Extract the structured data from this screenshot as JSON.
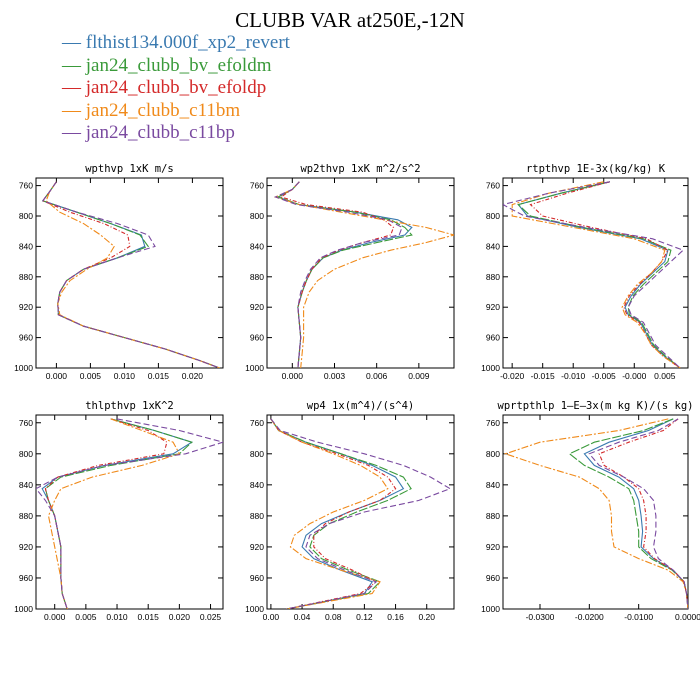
{
  "title": "CLUBB VAR at250E,-12N",
  "legend": [
    {
      "label": "flthist134.000f_xp2_revert",
      "color": "#3a7ab0"
    },
    {
      "label": "jan24_clubb_bv_efoldm",
      "color": "#3a9a3a"
    },
    {
      "label": "jan24_clubb_bv_efoldp",
      "color": "#d42a2a"
    },
    {
      "label": "jan24_clubb_c11bm",
      "color": "#f08a1a"
    },
    {
      "label": "jan24_clubb_c11bp",
      "color": "#7a4aa0"
    }
  ],
  "chart_data": [
    {
      "type": "line",
      "title": "wpthvp  1xK m/s",
      "ylim": [
        1000,
        750
      ],
      "yticks": [
        760,
        800,
        840,
        880,
        920,
        960,
        1000
      ],
      "ytick_labels": [
        "760",
        "800",
        "840",
        "880",
        "920",
        "960",
        "1000"
      ],
      "xlim": [
        -0.003,
        0.0245
      ],
      "xticks": [
        0.0,
        0.005,
        0.01,
        0.015,
        0.02
      ],
      "xtick_labels": [
        "0.000",
        "0.005",
        "0.010",
        "0.015",
        "0.020"
      ],
      "y": [
        755,
        768,
        780,
        795,
        810,
        825,
        840,
        855,
        870,
        885,
        900,
        915,
        930,
        945,
        960,
        975,
        990,
        1000
      ],
      "series": [
        {
          "values": [
            0.0,
            -0.001,
            -0.002,
            0.003,
            0.008,
            0.0125,
            0.013,
            0.009,
            0.004,
            0.0015,
            0.0005,
            0.0002,
            0.0003,
            0.004,
            0.01,
            0.016,
            0.021,
            0.024
          ]
        },
        {
          "values": [
            0.0,
            -0.001,
            -0.002,
            0.003,
            0.008,
            0.0123,
            0.0135,
            0.009,
            0.004,
            0.0015,
            0.0005,
            0.0002,
            0.0003,
            0.004,
            0.01,
            0.016,
            0.021,
            0.024
          ]
        },
        {
          "values": [
            0.0,
            -0.001,
            -0.002,
            0.002,
            0.007,
            0.0105,
            0.0108,
            0.008,
            0.004,
            0.0015,
            0.0005,
            0.0002,
            0.0003,
            0.004,
            0.01,
            0.016,
            0.021,
            0.024
          ]
        },
        {
          "values": [
            0.0,
            -0.001,
            -0.0015,
            0.0005,
            0.004,
            0.0065,
            0.0085,
            0.0075,
            0.0045,
            0.002,
            0.0008,
            0.0002,
            0.0005,
            0.004,
            0.01,
            0.016,
            0.021,
            0.024
          ]
        },
        {
          "values": [
            0.0,
            -0.001,
            -0.002,
            0.003,
            0.009,
            0.0135,
            0.0145,
            0.009,
            0.004,
            0.0015,
            0.0005,
            0.0002,
            0.0003,
            0.004,
            0.01,
            0.016,
            0.021,
            0.024
          ]
        }
      ]
    },
    {
      "type": "line",
      "title": "wp2thvp  1xK m^2/s^2",
      "ylim": [
        1000,
        750
      ],
      "yticks": [
        760,
        800,
        840,
        880,
        920,
        960,
        1000
      ],
      "ytick_labels": [
        "760",
        "800",
        "840",
        "880",
        "920",
        "960",
        "1000"
      ],
      "xlim": [
        -0.0018,
        0.0115
      ],
      "xticks": [
        0.0,
        0.003,
        0.006,
        0.009
      ],
      "xtick_labels": [
        "0.000",
        "0.003",
        "0.006",
        "0.009"
      ],
      "y": [
        755,
        765,
        775,
        785,
        795,
        805,
        815,
        825,
        835,
        845,
        855,
        870,
        885,
        900,
        920,
        940,
        960,
        980,
        1000
      ],
      "series": [
        {
          "values": [
            0.0005,
            0.0,
            -0.001,
            0.0005,
            0.0045,
            0.0075,
            0.0085,
            0.008,
            0.0055,
            0.0035,
            0.0022,
            0.0014,
            0.001,
            0.0007,
            0.0004,
            0.0005,
            0.0006,
            0.0005,
            0.0004
          ]
        },
        {
          "values": [
            0.0005,
            0.0,
            -0.001,
            0.0005,
            0.0045,
            0.007,
            0.008,
            0.0085,
            0.006,
            0.0036,
            0.0022,
            0.0014,
            0.001,
            0.0007,
            0.0004,
            0.0005,
            0.0006,
            0.0005,
            0.0004
          ]
        },
        {
          "values": [
            0.0005,
            0.0,
            -0.0008,
            0.001,
            0.005,
            0.0065,
            0.0072,
            0.007,
            0.005,
            0.0033,
            0.0021,
            0.0014,
            0.001,
            0.0007,
            0.0004,
            0.0005,
            0.0006,
            0.0005,
            0.0004
          ]
        },
        {
          "values": [
            0.0005,
            0.0,
            -0.0012,
            0.0005,
            0.0035,
            0.0065,
            0.0095,
            0.0115,
            0.0095,
            0.007,
            0.005,
            0.003,
            0.0018,
            0.0012,
            0.0008,
            0.0008,
            0.0008,
            0.0007,
            0.0006
          ]
        },
        {
          "values": [
            0.0005,
            0.0,
            -0.0012,
            0.0003,
            0.004,
            0.0068,
            0.0078,
            0.0076,
            0.005,
            0.0032,
            0.002,
            0.0013,
            0.0009,
            0.0006,
            0.0004,
            0.0005,
            0.0006,
            0.0005,
            0.0004
          ]
        }
      ]
    },
    {
      "type": "line",
      "title": "rtpthvp  1E-3x(kg/kg) K",
      "ylim": [
        1000,
        750
      ],
      "yticks": [
        760,
        800,
        840,
        880,
        920,
        960,
        1000
      ],
      "ytick_labels": [
        "760",
        "800",
        "840",
        "880",
        "920",
        "960",
        "1000"
      ],
      "xlim": [
        -0.0215,
        0.0088
      ],
      "xticks": [
        -0.02,
        -0.015,
        -0.01,
        -0.005,
        0.0,
        0.005
      ],
      "xtick_labels": [
        "-0.020",
        "-0.015",
        "-0.010",
        "-0.005",
        "-0.000",
        "0.005"
      ],
      "y": [
        755,
        770,
        785,
        800,
        815,
        830,
        845,
        860,
        875,
        890,
        905,
        920,
        930,
        940,
        955,
        970,
        985,
        1000
      ],
      "series": [
        {
          "values": [
            -0.004,
            -0.012,
            -0.019,
            -0.0175,
            -0.009,
            0.001,
            0.0055,
            0.005,
            0.003,
            0.001,
            -0.0005,
            -0.0015,
            -0.001,
            0.001,
            0.002,
            0.003,
            0.005,
            0.0075
          ]
        },
        {
          "values": [
            -0.004,
            -0.012,
            -0.019,
            -0.017,
            -0.0085,
            0.0015,
            0.006,
            0.0055,
            0.0035,
            0.0015,
            -0.0002,
            -0.001,
            -0.0008,
            0.0012,
            0.0022,
            0.0032,
            0.0052,
            0.0075
          ]
        },
        {
          "values": [
            -0.004,
            -0.011,
            -0.017,
            -0.015,
            -0.007,
            0.002,
            0.0055,
            0.0045,
            0.0028,
            0.0008,
            -0.0008,
            -0.0017,
            -0.0012,
            0.0008,
            0.0018,
            0.0028,
            0.0048,
            0.0075
          ]
        },
        {
          "values": [
            -0.005,
            -0.014,
            -0.02,
            -0.02,
            -0.01,
            0.0,
            0.005,
            0.0045,
            0.0028,
            0.0005,
            -0.001,
            -0.002,
            -0.0015,
            0.0005,
            0.0018,
            0.0028,
            0.0048,
            0.0075
          ]
        },
        {
          "values": [
            -0.004,
            -0.014,
            -0.0215,
            -0.018,
            -0.008,
            0.003,
            0.008,
            0.006,
            0.004,
            0.002,
            0.0,
            -0.001,
            -0.0005,
            0.0015,
            0.0025,
            0.0035,
            0.0055,
            0.0075
          ]
        }
      ]
    },
    {
      "type": "line",
      "title": "thlpthvp  1xK^2",
      "ylim": [
        1000,
        750
      ],
      "yticks": [
        760,
        800,
        840,
        880,
        920,
        960,
        1000
      ],
      "ytick_labels": [
        "760",
        "800",
        "840",
        "880",
        "920",
        "960",
        "1000"
      ],
      "xlim": [
        -0.003,
        0.027
      ],
      "xticks": [
        0.0,
        0.005,
        0.01,
        0.015,
        0.02,
        0.025
      ],
      "xtick_labels": [
        "0.000",
        "0.005",
        "0.010",
        "0.015",
        "0.020",
        "0.025"
      ],
      "y": [
        755,
        770,
        785,
        800,
        815,
        830,
        845,
        860,
        880,
        900,
        920,
        940,
        960,
        980,
        1000
      ],
      "series": [
        {
          "values": [
            0.009,
            0.016,
            0.022,
            0.019,
            0.008,
            0.0005,
            -0.002,
            -0.001,
            0.0,
            0.0005,
            0.001,
            0.001,
            0.001,
            0.0012,
            0.002
          ]
        },
        {
          "values": [
            0.009,
            0.016,
            0.022,
            0.02,
            0.009,
            0.001,
            -0.0015,
            -0.001,
            0.0,
            0.0005,
            0.001,
            0.001,
            0.001,
            0.0012,
            0.002
          ]
        },
        {
          "values": [
            0.009,
            0.015,
            0.018,
            0.0175,
            0.007,
            0.0005,
            -0.0015,
            -0.001,
            0.0,
            0.0005,
            0.001,
            0.001,
            0.001,
            0.0012,
            0.002
          ]
        },
        {
          "values": [
            0.009,
            0.014,
            0.019,
            0.02,
            0.014,
            0.006,
            0.001,
            0.0,
            -0.001,
            -0.0005,
            0.0,
            0.0005,
            0.001,
            0.0012,
            0.002
          ]
        },
        {
          "values": [
            0.01,
            0.02,
            0.027,
            0.021,
            0.008,
            0.0005,
            -0.003,
            -0.0015,
            0.0,
            0.0005,
            0.001,
            0.001,
            0.001,
            0.0012,
            0.002
          ]
        }
      ]
    },
    {
      "type": "line",
      "title": "wp4  1x(m^4)/(s^4)",
      "ylim": [
        1000,
        750
      ],
      "yticks": [
        760,
        800,
        840,
        880,
        920,
        960,
        1000
      ],
      "ytick_labels": [
        "760",
        "800",
        "840",
        "880",
        "920",
        "960",
        "1000"
      ],
      "xlim": [
        -0.005,
        0.235
      ],
      "xticks": [
        0.0,
        0.04,
        0.08,
        0.12,
        0.16,
        0.2
      ],
      "xtick_labels": [
        "0.00",
        "0.04",
        "0.08",
        "0.12",
        "0.16",
        "0.20"
      ],
      "y": [
        755,
        770,
        785,
        800,
        815,
        830,
        845,
        860,
        875,
        890,
        905,
        920,
        935,
        950,
        965,
        980,
        1000
      ],
      "series": [
        {
          "values": [
            0.0,
            0.01,
            0.045,
            0.09,
            0.13,
            0.16,
            0.17,
            0.14,
            0.1,
            0.065,
            0.045,
            0.04,
            0.055,
            0.09,
            0.13,
            0.12,
            0.02
          ]
        },
        {
          "values": [
            0.0,
            0.01,
            0.045,
            0.09,
            0.135,
            0.17,
            0.18,
            0.15,
            0.11,
            0.075,
            0.055,
            0.05,
            0.065,
            0.1,
            0.14,
            0.125,
            0.02
          ]
        },
        {
          "values": [
            0.0,
            0.01,
            0.04,
            0.085,
            0.125,
            0.15,
            0.16,
            0.14,
            0.1,
            0.07,
            0.055,
            0.055,
            0.07,
            0.105,
            0.135,
            0.115,
            0.02
          ]
        },
        {
          "values": [
            0.0,
            0.01,
            0.04,
            0.08,
            0.115,
            0.14,
            0.15,
            0.12,
            0.08,
            0.05,
            0.03,
            0.025,
            0.045,
            0.09,
            0.14,
            0.13,
            0.02
          ]
        },
        {
          "values": [
            0.0,
            0.012,
            0.06,
            0.12,
            0.17,
            0.205,
            0.23,
            0.19,
            0.12,
            0.075,
            0.05,
            0.045,
            0.06,
            0.095,
            0.135,
            0.12,
            0.02
          ]
        }
      ]
    },
    {
      "type": "line",
      "title": "wprtpthlp  1–E–3x(m kg K)/(s kg)",
      "ylim": [
        1000,
        750
      ],
      "yticks": [
        760,
        800,
        840,
        880,
        920,
        960,
        1000
      ],
      "ytick_labels": [
        "760",
        "800",
        "840",
        "880",
        "920",
        "960",
        "1000"
      ],
      "xlim": [
        -0.0375,
        0.0
      ],
      "xticks": [
        -0.03,
        -0.02,
        -0.01,
        0.0
      ],
      "xtick_labels": [
        "-0.0300",
        "-0.0200",
        "-0.0100",
        "0.0000"
      ],
      "y": [
        755,
        770,
        785,
        800,
        815,
        830,
        845,
        860,
        880,
        900,
        920,
        935,
        950,
        965,
        980,
        1000
      ],
      "series": [
        {
          "values": [
            -0.003,
            -0.008,
            -0.016,
            -0.021,
            -0.019,
            -0.014,
            -0.011,
            -0.01,
            -0.0095,
            -0.0092,
            -0.0095,
            -0.007,
            -0.003,
            -0.0008,
            -0.0003,
            0.0
          ]
        },
        {
          "values": [
            -0.003,
            -0.009,
            -0.019,
            -0.024,
            -0.021,
            -0.016,
            -0.012,
            -0.011,
            -0.0105,
            -0.01,
            -0.01,
            -0.0075,
            -0.0032,
            -0.0008,
            -0.0003,
            0.0
          ]
        },
        {
          "values": [
            -0.002,
            -0.005,
            -0.012,
            -0.018,
            -0.017,
            -0.013,
            -0.01,
            -0.009,
            -0.0085,
            -0.0085,
            -0.009,
            -0.0068,
            -0.003,
            -0.0008,
            -0.0003,
            0.0
          ]
        },
        {
          "values": [
            -0.004,
            -0.014,
            -0.03,
            -0.037,
            -0.03,
            -0.022,
            -0.018,
            -0.016,
            -0.0155,
            -0.0155,
            -0.015,
            -0.01,
            -0.004,
            -0.001,
            -0.0003,
            0.0
          ]
        },
        {
          "values": [
            -0.002,
            -0.006,
            -0.014,
            -0.02,
            -0.018,
            -0.013,
            -0.009,
            -0.007,
            -0.0065,
            -0.0065,
            -0.007,
            -0.006,
            -0.003,
            -0.0008,
            -0.0003,
            0.0
          ]
        }
      ]
    }
  ]
}
